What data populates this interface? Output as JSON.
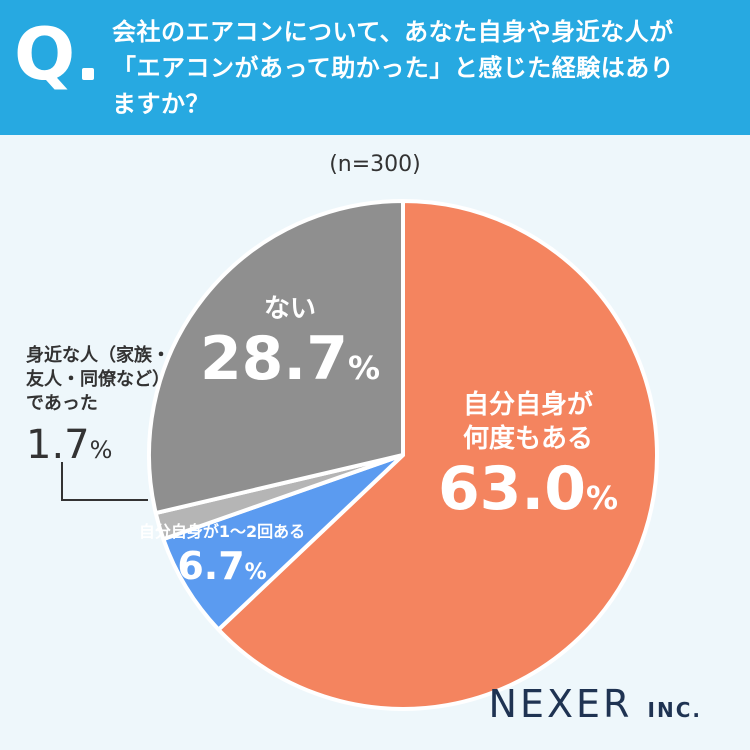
{
  "header": {
    "q_letter": "Q",
    "question_lines": [
      "会社のエアコンについて、あなた自身や身近な人が",
      "「エアコンがあって助かった」と感じた経験はあり",
      "ますか？"
    ]
  },
  "chart_data": {
    "type": "pie",
    "title": "",
    "sample_size_label": "(n=300)",
    "start_angle_deg": 0,
    "direction": "clockwise",
    "slices": [
      {
        "label_lines": [
          "自分自身が",
          "何度もある"
        ],
        "value": 63.0,
        "display": "63.0",
        "unit": "%",
        "color": "#f4845f"
      },
      {
        "label_lines": [
          "自分自身が1〜2回ある"
        ],
        "value": 6.7,
        "display": "6.7",
        "unit": "%",
        "color": "#5b9bf0"
      },
      {
        "label_lines": [
          "身近な人（家族・",
          "友人・同僚など）",
          "であった"
        ],
        "value": 1.7,
        "display": "1.7",
        "unit": "%",
        "color": "#b5b5b5"
      },
      {
        "label_lines": [
          "ない"
        ],
        "value": 28.7,
        "display": "28.7",
        "unit": "%",
        "color": "#8f8f8f"
      }
    ]
  },
  "logo": {
    "name": "NEXER",
    "suffix": "INC."
  }
}
